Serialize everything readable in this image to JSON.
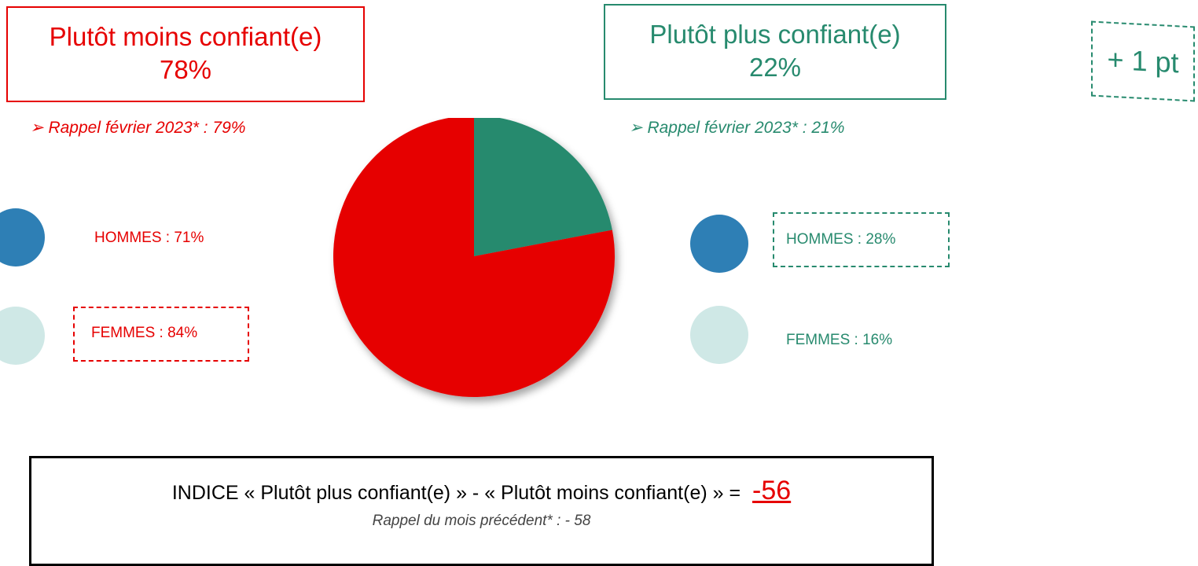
{
  "chart_data": {
    "type": "pie",
    "categories": [
      "Plutôt plus confiant(e)",
      "Plutôt moins confiant(e)"
    ],
    "values": [
      22,
      78
    ],
    "value_labels": [
      "22%",
      "78%"
    ],
    "colors": [
      "#278a6e",
      "#e60000"
    ],
    "recalls": [
      "Rappel février 2023* : 21%",
      "Rappel février 2023* : 79%"
    ],
    "evolution": "+ 1 pt",
    "breakdown": {
      "minus": {
        "men": "HOMMES : 71%",
        "women": "FEMMES : 84%"
      },
      "plus": {
        "men": "HOMMES : 28%",
        "women": "FEMMES : 16%"
      }
    },
    "index": {
      "label": "INDICE « Plutôt plus confiant(e) » - « Plutôt moins confiant(e) » =",
      "value": "-56",
      "recall": "Rappel du mois précédent* : - 58"
    }
  }
}
